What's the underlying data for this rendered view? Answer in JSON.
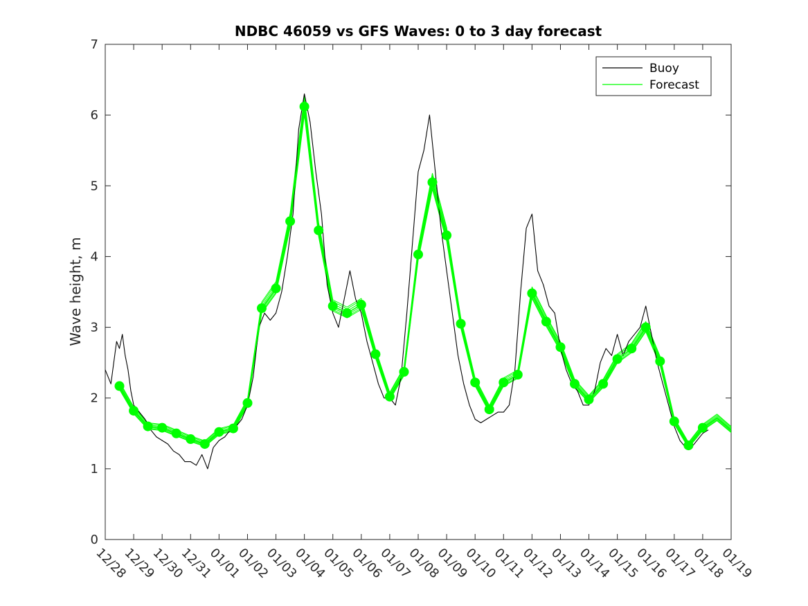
{
  "chart_data": {
    "type": "line",
    "title": "NDBC 46059 vs GFS Waves: 0 to 3 day forecast",
    "xlabel": "",
    "ylabel": "Wave height, m",
    "xlim": [
      0,
      22
    ],
    "ylim": [
      0,
      7
    ],
    "yticks": [
      0,
      1,
      2,
      3,
      4,
      5,
      6,
      7
    ],
    "xtick_labels": [
      "12/28",
      "12/29",
      "12/30",
      "12/31",
      "01/01",
      "01/02",
      "01/03",
      "01/04",
      "01/05",
      "01/06",
      "01/07",
      "01/08",
      "01/09",
      "01/10",
      "01/11",
      "01/12",
      "01/13",
      "01/14",
      "01/15",
      "01/16",
      "01/17",
      "01/18",
      "01/19"
    ],
    "grid": false,
    "legend": {
      "placement": "top-right",
      "entries": [
        "Buoy",
        "Forecast"
      ]
    },
    "colors": {
      "buoy": "#000000",
      "forecast": "#00ff00",
      "axis": "#262626"
    },
    "series": [
      {
        "name": "Buoy",
        "color": "#000000",
        "x": [
          0,
          0.1,
          0.2,
          0.3,
          0.4,
          0.5,
          0.6,
          0.7,
          0.8,
          0.9,
          1.0,
          1.2,
          1.4,
          1.6,
          1.8,
          2.0,
          2.2,
          2.4,
          2.6,
          2.8,
          3.0,
          3.2,
          3.4,
          3.6,
          3.8,
          4.0,
          4.2,
          4.4,
          4.6,
          4.8,
          5.0,
          5.2,
          5.4,
          5.6,
          5.8,
          6.0,
          6.2,
          6.4,
          6.6,
          6.8,
          7.0,
          7.2,
          7.4,
          7.6,
          7.8,
          8.0,
          8.2,
          8.4,
          8.6,
          8.8,
          9.0,
          9.2,
          9.4,
          9.6,
          9.8,
          10.0,
          10.2,
          10.4,
          10.6,
          10.8,
          11.0,
          11.2,
          11.4,
          11.6,
          11.8,
          12.0,
          12.2,
          12.4,
          12.6,
          12.8,
          13.0,
          13.2,
          13.4,
          13.6,
          13.8,
          14.0,
          14.2,
          14.4,
          14.6,
          14.8,
          15.0,
          15.2,
          15.4,
          15.6,
          15.8,
          16.0,
          16.2,
          16.4,
          16.6,
          16.8,
          17.0,
          17.2,
          17.4,
          17.6,
          17.8,
          18.0,
          18.2,
          18.4,
          18.6,
          18.8,
          19.0,
          19.2,
          19.4,
          19.6,
          19.8,
          20.0,
          20.2,
          20.4,
          20.6,
          20.8,
          21.0,
          21.2
        ],
        "y": [
          2.4,
          2.3,
          2.2,
          2.5,
          2.8,
          2.7,
          2.9,
          2.6,
          2.4,
          2.1,
          1.9,
          1.8,
          1.7,
          1.55,
          1.45,
          1.4,
          1.35,
          1.25,
          1.2,
          1.1,
          1.1,
          1.05,
          1.2,
          1.0,
          1.3,
          1.4,
          1.45,
          1.55,
          1.6,
          1.7,
          1.9,
          2.3,
          3.0,
          3.2,
          3.1,
          3.2,
          3.5,
          4.0,
          4.6,
          5.8,
          6.3,
          5.9,
          5.2,
          4.6,
          3.6,
          3.2,
          3.0,
          3.4,
          3.8,
          3.4,
          3.2,
          2.8,
          2.5,
          2.2,
          2.0,
          2.0,
          1.9,
          2.3,
          3.2,
          4.2,
          5.2,
          5.5,
          6.0,
          5.2,
          4.4,
          3.8,
          3.2,
          2.6,
          2.2,
          1.9,
          1.7,
          1.65,
          1.7,
          1.75,
          1.8,
          1.8,
          1.9,
          2.4,
          3.5,
          4.4,
          4.6,
          3.8,
          3.6,
          3.3,
          3.2,
          2.7,
          2.4,
          2.2,
          2.1,
          1.9,
          1.9,
          2.1,
          2.5,
          2.7,
          2.6,
          2.9,
          2.6,
          2.8,
          2.9,
          3.0,
          3.3,
          2.9,
          2.5,
          2.2,
          1.9,
          1.6,
          1.4,
          1.3,
          1.3,
          1.4,
          1.5,
          1.55
        ]
      },
      {
        "name": "Forecast",
        "color": "#00ff00",
        "x": [
          0.5,
          1.0,
          1.5,
          2.0,
          2.5,
          3.0,
          3.5,
          4.0,
          4.5,
          5.0,
          5.5,
          6.0,
          6.5,
          7.0,
          7.5,
          8.0,
          8.5,
          9.0,
          9.5,
          10.0,
          10.5,
          11.0,
          11.5,
          12.0,
          12.5,
          13.0,
          13.5,
          14.0,
          14.5,
          15.0,
          15.5,
          16.0,
          16.5,
          17.0,
          17.5,
          18.0,
          18.5,
          19.0,
          19.5,
          20.0,
          20.5,
          21.0,
          21.5,
          22.0
        ],
        "y": [
          2.17,
          1.82,
          1.6,
          1.58,
          1.5,
          1.42,
          1.35,
          1.52,
          1.57,
          1.93,
          3.27,
          3.55,
          4.5,
          6.12,
          4.37,
          3.3,
          3.2,
          3.32,
          2.62,
          2.02,
          2.37,
          4.03,
          5.05,
          4.3,
          3.05,
          2.22,
          1.84,
          2.22,
          2.33,
          3.48,
          3.08,
          2.72,
          2.2,
          1.98,
          2.2,
          2.55,
          2.7,
          3.0,
          2.52,
          1.67,
          1.33,
          1.58,
          1.72,
          1.55
        ]
      }
    ],
    "forecast_ensemble": {
      "offsets": [
        0.1,
        -0.08,
        0.2,
        -0.16,
        0.28,
        -0.22
      ]
    },
    "forecast_markers": {
      "x": [
        0.5,
        1.0,
        1.5,
        2.0,
        2.5,
        3.0,
        3.5,
        4.0,
        4.5,
        5.0,
        5.5,
        6.0,
        6.5,
        7.0,
        7.5,
        8.0,
        8.5,
        9.0,
        9.5,
        10.0,
        10.5,
        11.0,
        11.5,
        12.0,
        12.5,
        13.0,
        13.5,
        14.0,
        14.5,
        15.0,
        15.5,
        16.0,
        16.5,
        17.0,
        17.5,
        18.0,
        18.5,
        19.0,
        19.5,
        20.0,
        20.5,
        21.0
      ],
      "y": [
        2.17,
        1.82,
        1.6,
        1.58,
        1.5,
        1.42,
        1.35,
        1.52,
        1.57,
        1.93,
        3.27,
        3.55,
        4.5,
        6.12,
        4.37,
        3.3,
        3.2,
        3.32,
        2.62,
        2.02,
        2.37,
        4.03,
        5.05,
        4.3,
        3.05,
        2.22,
        1.84,
        2.22,
        2.33,
        3.48,
        3.08,
        2.72,
        2.2,
        1.98,
        2.2,
        2.55,
        2.7,
        3.0,
        2.52,
        1.67,
        1.33,
        1.58
      ]
    }
  }
}
